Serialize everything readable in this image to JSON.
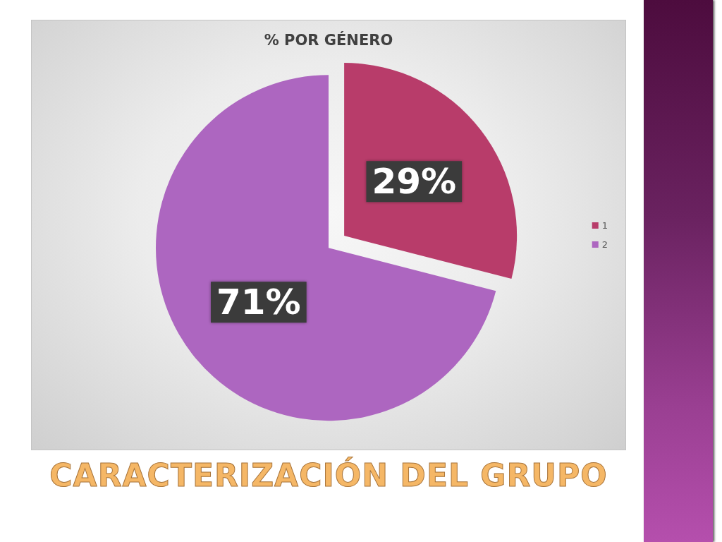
{
  "chart_data": {
    "type": "pie",
    "title": "% POR GÉNERO",
    "categories": [
      "1",
      "2"
    ],
    "values": [
      29,
      71
    ],
    "colors": [
      "#b83c6a",
      "#ad66c0"
    ],
    "value_labels": [
      "29%",
      "71%"
    ],
    "legend": "right",
    "annotations": [
      "CARACTERIZACIÓN DEL GRUPO"
    ]
  }
}
